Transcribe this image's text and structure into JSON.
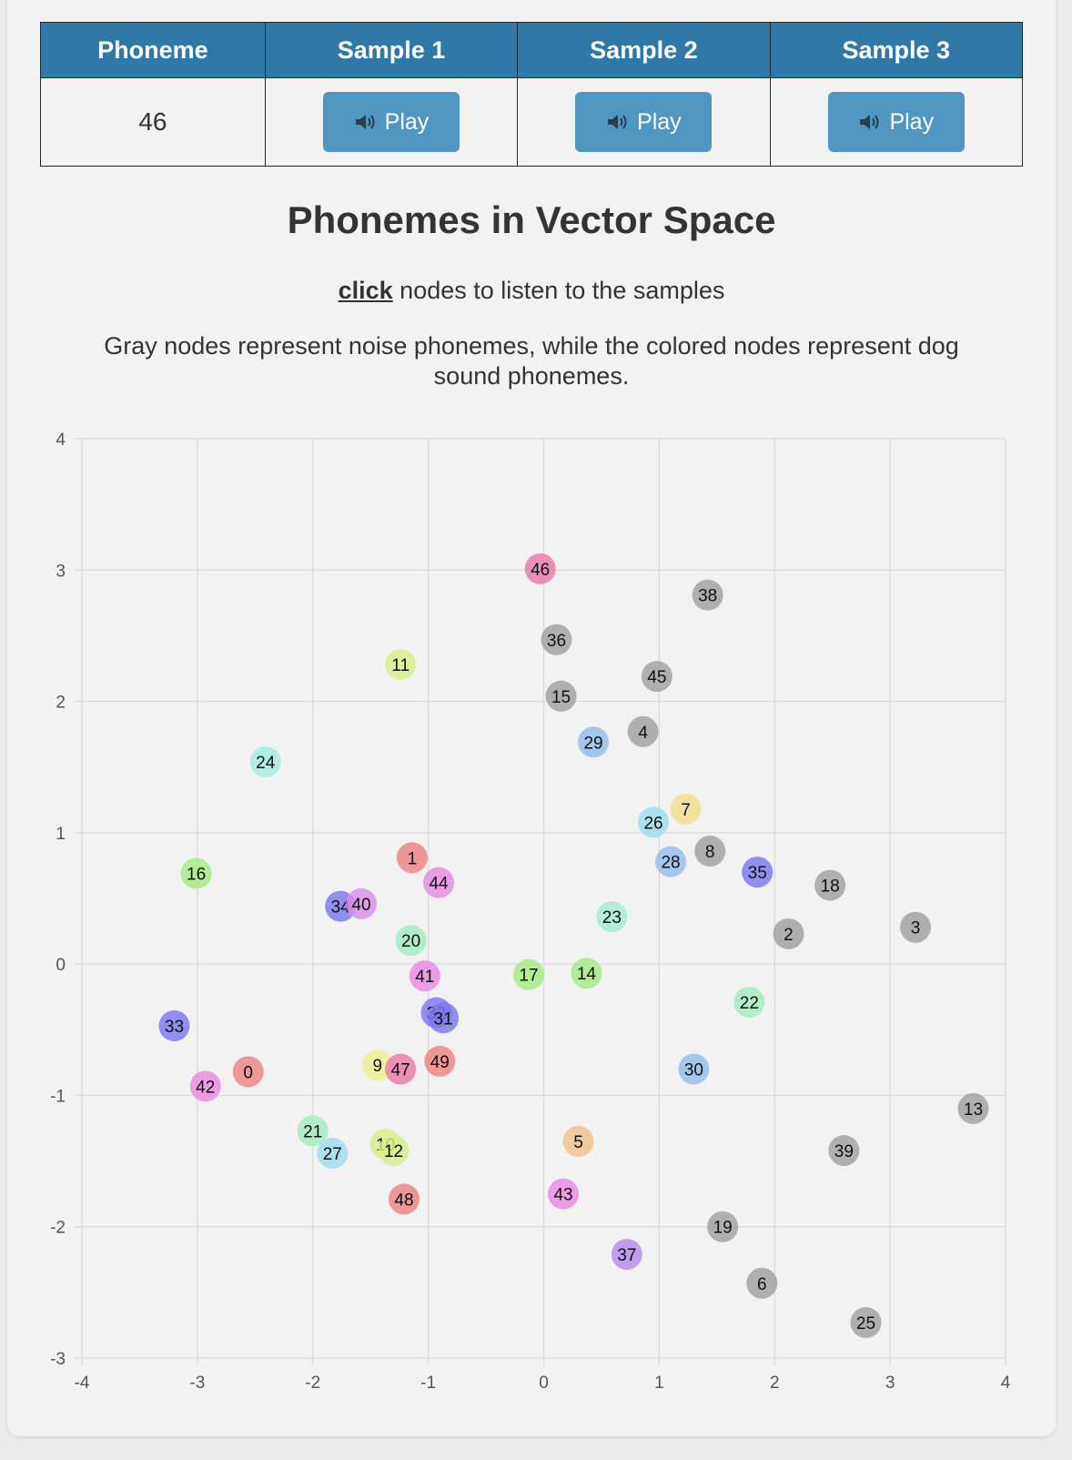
{
  "table": {
    "headers": [
      "Phoneme",
      "Sample 1",
      "Sample 2",
      "Sample 3"
    ],
    "phoneme": "46",
    "play_label": "Play"
  },
  "title": "Phonemes in Vector Space",
  "hint": {
    "click": "click",
    "rest": " nodes to listen to the samples"
  },
  "description": "Gray nodes represent noise phonemes, while the colored nodes represent dog sound phonemes.",
  "colors": {
    "header": "#2f78a8",
    "button": "#4f97c2",
    "noise": "#a0a0a0"
  },
  "chart_data": {
    "type": "scatter",
    "xlim": [
      -4,
      4
    ],
    "ylim": [
      -3,
      4
    ],
    "x_ticks": [
      -4,
      -3,
      -2,
      -1,
      0,
      1,
      2,
      3,
      4
    ],
    "y_ticks": [
      -3,
      -2,
      -1,
      0,
      1,
      2,
      3,
      4
    ],
    "grid": true,
    "points": [
      {
        "label": "46",
        "x": -0.03,
        "y": 3.01,
        "color": "#e87aa8"
      },
      {
        "label": "38",
        "x": 1.42,
        "y": 2.81,
        "color": "#a0a0a0"
      },
      {
        "label": "36",
        "x": 0.11,
        "y": 2.47,
        "color": "#a0a0a0"
      },
      {
        "label": "11",
        "x": -1.24,
        "y": 2.28,
        "color": "#d6ef8c"
      },
      {
        "label": "45",
        "x": 0.98,
        "y": 2.19,
        "color": "#a0a0a0"
      },
      {
        "label": "15",
        "x": 0.15,
        "y": 2.04,
        "color": "#a0a0a0"
      },
      {
        "label": "4",
        "x": 0.86,
        "y": 1.77,
        "color": "#a0a0a0"
      },
      {
        "label": "29",
        "x": 0.43,
        "y": 1.69,
        "color": "#92bdec"
      },
      {
        "label": "24",
        "x": -2.41,
        "y": 1.54,
        "color": "#a4ece2"
      },
      {
        "label": "7",
        "x": 1.23,
        "y": 1.18,
        "color": "#f2de8e"
      },
      {
        "label": "26",
        "x": 0.95,
        "y": 1.08,
        "color": "#a0dcef"
      },
      {
        "label": "8",
        "x": 1.44,
        "y": 0.86,
        "color": "#a0a0a0"
      },
      {
        "label": "1",
        "x": -1.14,
        "y": 0.81,
        "color": "#ec8383"
      },
      {
        "label": "28",
        "x": 1.1,
        "y": 0.78,
        "color": "#92bdec"
      },
      {
        "label": "16",
        "x": -3.01,
        "y": 0.69,
        "color": "#a4ea82"
      },
      {
        "label": "35",
        "x": 1.85,
        "y": 0.7,
        "color": "#7c78ee"
      },
      {
        "label": "44",
        "x": -0.91,
        "y": 0.62,
        "color": "#e58ae0"
      },
      {
        "label": "18",
        "x": 2.48,
        "y": 0.6,
        "color": "#a0a0a0"
      },
      {
        "label": "34",
        "x": -1.76,
        "y": 0.44,
        "color": "#7c78ee"
      },
      {
        "label": "40",
        "x": -1.58,
        "y": 0.46,
        "color": "#d98ee8"
      },
      {
        "label": "23",
        "x": 0.59,
        "y": 0.36,
        "color": "#a2ebd2"
      },
      {
        "label": "3",
        "x": 3.22,
        "y": 0.28,
        "color": "#a0a0a0"
      },
      {
        "label": "2",
        "x": 2.12,
        "y": 0.23,
        "color": "#a0a0a0"
      },
      {
        "label": "20",
        "x": -1.15,
        "y": 0.18,
        "color": "#a2ebbe"
      },
      {
        "label": "41",
        "x": -1.03,
        "y": -0.09,
        "color": "#e58ae0"
      },
      {
        "label": "17",
        "x": -0.13,
        "y": -0.08,
        "color": "#a4ea82"
      },
      {
        "label": "14",
        "x": 0.37,
        "y": -0.07,
        "color": "#a4ea82"
      },
      {
        "label": "22",
        "x": 1.78,
        "y": -0.29,
        "color": "#a2ebbe"
      },
      {
        "label": "32",
        "x": -0.93,
        "y": -0.37,
        "color": "#7c78ee"
      },
      {
        "label": "31",
        "x": -0.87,
        "y": -0.41,
        "color": "#7c78ee"
      },
      {
        "label": "33",
        "x": -3.2,
        "y": -0.47,
        "color": "#7c78ee"
      },
      {
        "label": "49",
        "x": -0.9,
        "y": -0.74,
        "color": "#ec8383"
      },
      {
        "label": "9",
        "x": -1.44,
        "y": -0.77,
        "color": "#eef08e"
      },
      {
        "label": "47",
        "x": -1.24,
        "y": -0.8,
        "color": "#e87aa8"
      },
      {
        "label": "0",
        "x": -2.56,
        "y": -0.82,
        "color": "#ec8383"
      },
      {
        "label": "30",
        "x": 1.3,
        "y": -0.8,
        "color": "#92bdec"
      },
      {
        "label": "42",
        "x": -2.93,
        "y": -0.93,
        "color": "#e58ae0"
      },
      {
        "label": "13",
        "x": 3.72,
        "y": -1.1,
        "color": "#a0a0a0"
      },
      {
        "label": "21",
        "x": -2.0,
        "y": -1.27,
        "color": "#a2ebbe"
      },
      {
        "label": "5",
        "x": 0.3,
        "y": -1.35,
        "color": "#f0c08e"
      },
      {
        "label": "10",
        "x": -1.37,
        "y": -1.37,
        "color": "#d6ef8c"
      },
      {
        "label": "12",
        "x": -1.3,
        "y": -1.42,
        "color": "#d6ef8c"
      },
      {
        "label": "39",
        "x": 2.6,
        "y": -1.42,
        "color": "#a0a0a0"
      },
      {
        "label": "27",
        "x": -1.83,
        "y": -1.44,
        "color": "#a0dcef"
      },
      {
        "label": "43",
        "x": 0.17,
        "y": -1.75,
        "color": "#e58ae0"
      },
      {
        "label": "48",
        "x": -1.21,
        "y": -1.79,
        "color": "#ec8383"
      },
      {
        "label": "19",
        "x": 1.55,
        "y": -2.0,
        "color": "#a0a0a0"
      },
      {
        "label": "37",
        "x": 0.72,
        "y": -2.21,
        "color": "#b58aeb"
      },
      {
        "label": "6",
        "x": 1.89,
        "y": -2.43,
        "color": "#a0a0a0"
      },
      {
        "label": "25",
        "x": 2.79,
        "y": -2.73,
        "color": "#a0a0a0"
      }
    ]
  }
}
